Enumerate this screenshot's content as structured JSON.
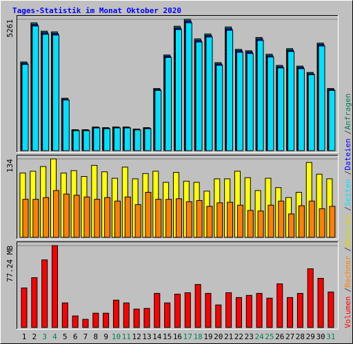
{
  "title": "Tages-Statistik im Monat Oktober 2020",
  "categories": [
    "1",
    "2",
    "3",
    "4",
    "5",
    "6",
    "7",
    "8",
    "9",
    "10",
    "11",
    "12",
    "13",
    "14",
    "15",
    "16",
    "17",
    "18",
    "19",
    "20",
    "21",
    "22",
    "23",
    "24",
    "25",
    "26",
    "27",
    "28",
    "29",
    "30",
    "31"
  ],
  "highlighted": [
    "3",
    "4",
    "10",
    "11",
    "17",
    "18",
    "24",
    "25",
    "31"
  ],
  "highlight_color": "#00805c",
  "legend_separator": "/",
  "chart_data": [
    {
      "type": "bar",
      "ylim": [
        0,
        5261
      ],
      "yticks": [
        5261
      ],
      "series": [
        {
          "name": "Anfragen",
          "color": "#00805c",
          "values": [
            3554,
            5121,
            4785,
            4757,
            2099,
            840,
            840,
            951,
            923,
            951,
            951,
            868,
            923,
            2490,
            3833,
            4981,
            5261,
            4477,
            4673,
            3526,
            4953,
            4058,
            4002,
            4533,
            3861,
            3414,
            4085,
            3386,
            3134,
            4309,
            2490
          ]
        },
        {
          "name": "Dateien",
          "color": "#0000ff",
          "values": [
            3500,
            5050,
            4720,
            4690,
            2060,
            820,
            820,
            930,
            900,
            930,
            930,
            850,
            900,
            2450,
            3780,
            4910,
            5190,
            4410,
            4610,
            3470,
            4880,
            4000,
            3950,
            4470,
            3800,
            3360,
            4020,
            3330,
            3080,
            4250,
            2450
          ]
        },
        {
          "name": "Seiten",
          "color": "#00e0ff",
          "values": [
            3450,
            4990,
            4660,
            4630,
            2030,
            800,
            800,
            910,
            880,
            910,
            910,
            830,
            880,
            2410,
            3730,
            4850,
            5120,
            4350,
            4550,
            3420,
            4820,
            3940,
            3890,
            4410,
            3750,
            3310,
            3970,
            3280,
            3040,
            4190,
            2410
          ]
        }
      ]
    },
    {
      "type": "bar",
      "ylim": [
        0,
        134
      ],
      "yticks": [
        134
      ],
      "series": [
        {
          "name": "Besuche",
          "color": "#ffff00",
          "values": [
            110,
            113,
            121,
            134,
            110,
            114,
            104,
            123,
            112,
            101,
            120,
            100,
            109,
            113,
            94,
            111,
            96,
            94,
            79,
            100,
            100,
            113,
            102,
            80,
            101,
            85,
            68,
            77,
            128,
            108,
            100
          ]
        },
        {
          "name": "Rechner",
          "color": "#ff8000",
          "values": [
            65,
            65,
            68,
            80,
            74,
            72,
            69,
            65,
            68,
            62,
            69,
            56,
            77,
            65,
            65,
            66,
            61,
            63,
            53,
            59,
            60,
            55,
            46,
            45,
            55,
            62,
            40,
            54,
            62,
            49,
            53
          ]
        }
      ]
    },
    {
      "type": "bar",
      "ylim": [
        0,
        77.24
      ],
      "yticks": [
        {
          "value": 77.24,
          "label": "77.24 MB"
        }
      ],
      "series": [
        {
          "name": "Volumen",
          "color": "#ff0000",
          "values": [
            37.3,
            47.0,
            63.8,
            77.24,
            23.2,
            10.9,
            7.7,
            13.5,
            13.5,
            25.8,
            23.2,
            17.4,
            18.0,
            32.2,
            23.2,
            31.5,
            32.8,
            40.6,
            32.2,
            21.3,
            32.8,
            28.3,
            30.3,
            32.2,
            27.7,
            41.2,
            28.3,
            32.2,
            55.4,
            46.4,
            33.5
          ]
        }
      ]
    }
  ]
}
